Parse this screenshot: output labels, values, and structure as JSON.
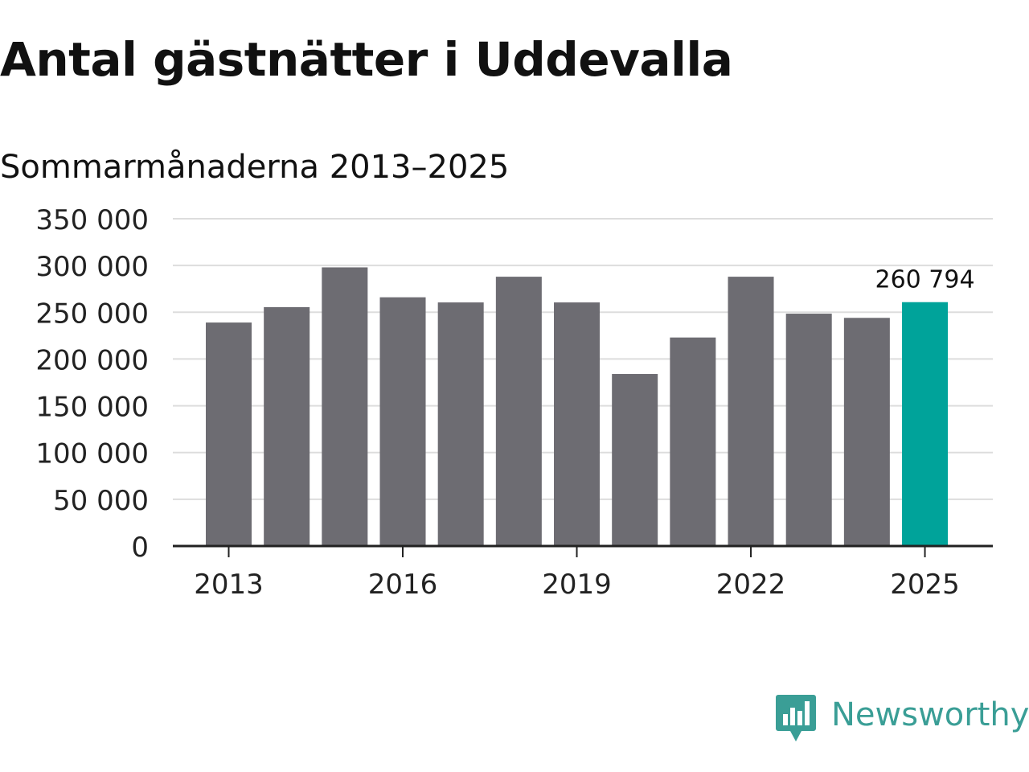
{
  "header": {
    "title": "Antal gästnätter i Uddevalla",
    "subtitle": "Sommarmånaderna 2013–2025"
  },
  "branding": {
    "logo_text": "Newsworthy",
    "logo_icon": "bar-chart-badge-icon",
    "logo_color": "#3a9e96"
  },
  "colors": {
    "bar": "#6d6c72",
    "highlight": "#00a39a",
    "grid": "#dddddd",
    "axis": "#222222"
  },
  "chart_data": {
    "type": "bar",
    "categories": [
      "2013",
      "2014",
      "2015",
      "2016",
      "2017",
      "2018",
      "2019",
      "2020",
      "2021",
      "2022",
      "2023",
      "2024",
      "2025"
    ],
    "values": [
      239000,
      255500,
      298000,
      266000,
      260500,
      288000,
      260500,
      184000,
      223000,
      288000,
      248500,
      244000,
      260794
    ],
    "highlight_index": 12,
    "data_labels": [
      {
        "index": 12,
        "text": "260 794"
      }
    ],
    "ylim": [
      0,
      350000
    ],
    "yticks": [
      {
        "value": 350000,
        "label": "350 000"
      },
      {
        "value": 300000,
        "label": "300 000"
      },
      {
        "value": 250000,
        "label": "250 000"
      },
      {
        "value": 200000,
        "label": "200 000"
      },
      {
        "value": 150000,
        "label": "150 000"
      },
      {
        "value": 100000,
        "label": "100 000"
      },
      {
        "value": 50000,
        "label": "50 000"
      },
      {
        "value": 0,
        "label": "0"
      }
    ],
    "xticks": [
      "2013",
      "2016",
      "2019",
      "2022",
      "2025"
    ],
    "grid": true,
    "legend": "none",
    "xlabel": "",
    "ylabel": ""
  }
}
